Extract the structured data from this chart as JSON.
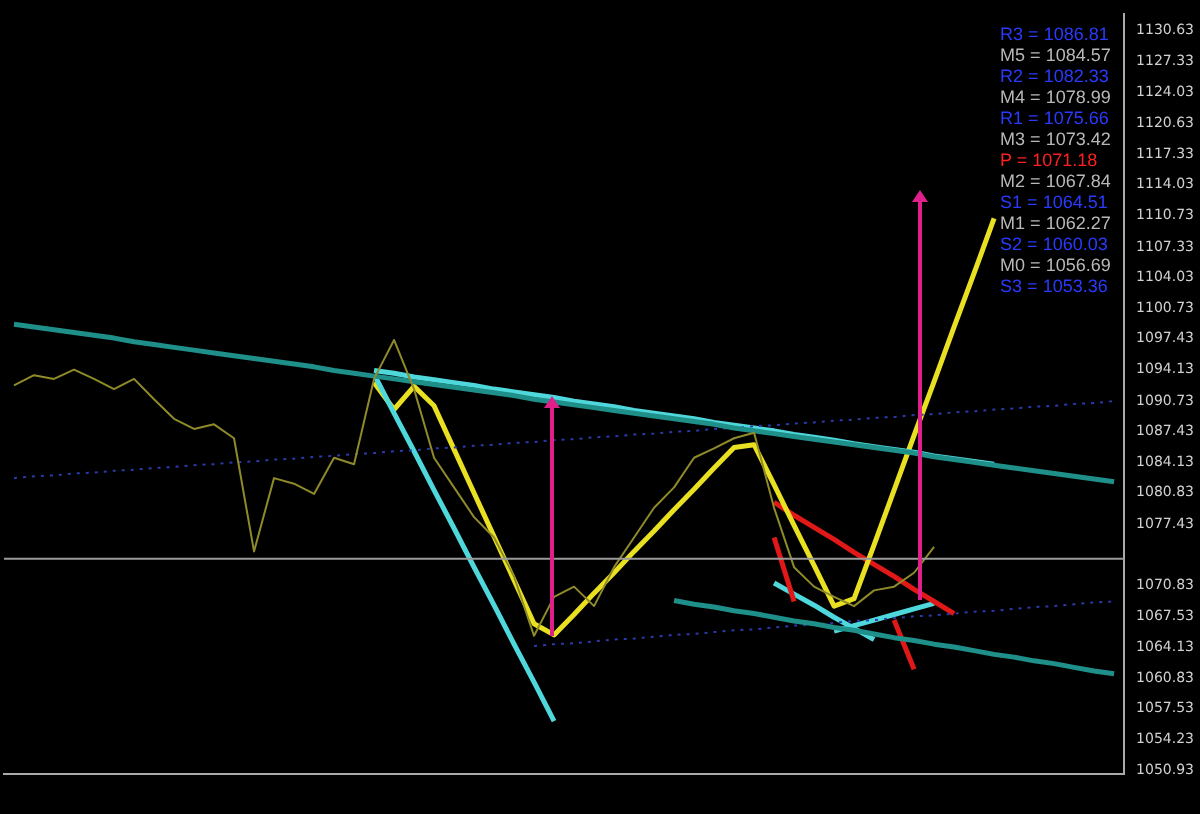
{
  "chart_data": {
    "type": "line",
    "categories": [
      null,
      null,
      null,
      null,
      null,
      null,
      null,
      null,
      null,
      null,
      null,
      null,
      null,
      null,
      null,
      null,
      null,
      null,
      null,
      null,
      null,
      null,
      null,
      null,
      null,
      null,
      null,
      null,
      null,
      null,
      null,
      null,
      null,
      null,
      null,
      null,
      null,
      null,
      null,
      null,
      null,
      null,
      null,
      null,
      null,
      null,
      null,
      null,
      null,
      null,
      null,
      null,
      null,
      null,
      null,
      null
    ],
    "series": [
      {
        "color": "#8f8a2a",
        "values": [
          1092.4,
          1093.5,
          1093.1,
          1094.1,
          1093.1,
          1092.0,
          1093.1,
          1090.9,
          1088.8,
          1087.7,
          1088.2,
          1086.7,
          1074.5,
          1082.4,
          1081.8,
          1080.7,
          1084.6,
          1083.9,
          1093.1,
          1097.3,
          1092.0,
          1084.6,
          1081.4,
          1078.2,
          1076.0,
          1071.8,
          1065.4,
          1069.6,
          1070.7,
          1068.6,
          1072.8,
          1076.0,
          1079.2,
          1081.4,
          1084.6,
          1085.6,
          1086.7,
          1087.3,
          1079.2,
          1072.8,
          1070.7,
          1069.6,
          1068.6,
          1070.3,
          1070.7,
          1072.2,
          1075.0,
          null,
          null,
          null,
          null,
          null,
          null,
          null,
          null,
          null
        ]
      },
      {
        "color": "#1f8f8a",
        "values": [
          1099.0,
          1098.7,
          1098.4,
          1098.1,
          1097.8,
          1097.5,
          1097.1,
          1096.8,
          1096.5,
          1096.2,
          1095.9,
          1095.6,
          1095.3,
          1095.0,
          1094.7,
          1094.4,
          1094.0,
          1093.7,
          1093.4,
          1093.1,
          1092.8,
          1092.5,
          1092.2,
          1091.9,
          1091.6,
          1091.3,
          1090.9,
          1090.6,
          1090.3,
          1090.0,
          1089.7,
          1089.4,
          1089.1,
          1088.8,
          1088.5,
          1088.2,
          1087.8,
          1087.5,
          1087.2,
          1086.9,
          1086.6,
          1086.3,
          1086.0,
          1085.7,
          1085.4,
          1085.1,
          1084.7,
          1084.4,
          1084.1,
          1083.8,
          1083.5,
          1083.2,
          1082.9,
          1082.6,
          1082.3,
          1082.0
        ]
      },
      {
        "color": "#1f8f8a",
        "values": [
          null,
          null,
          null,
          null,
          null,
          null,
          null,
          null,
          null,
          null,
          null,
          null,
          null,
          null,
          null,
          null,
          null,
          null,
          null,
          null,
          null,
          null,
          null,
          null,
          null,
          null,
          null,
          null,
          null,
          null,
          null,
          null,
          null,
          1069.2,
          1068.8,
          1068.5,
          1068.1,
          1067.8,
          1067.4,
          1067.0,
          1066.7,
          1066.3,
          1066.0,
          1065.6,
          1065.2,
          1064.9,
          1064.5,
          1064.2,
          1063.8,
          1063.4,
          1063.1,
          1062.7,
          1062.4,
          1062.0,
          1061.6,
          1061.3
        ]
      },
      {
        "color": "#2a3aa8",
        "line_style": "dotted",
        "values": [
          1082.4,
          1082.6,
          1082.7,
          1082.9,
          1083.0,
          1083.2,
          1083.3,
          1083.5,
          1083.6,
          1083.8,
          1083.9,
          1084.1,
          1084.2,
          1084.4,
          1084.5,
          1084.7,
          1084.8,
          1085.0,
          1085.1,
          1085.3,
          1085.4,
          1085.6,
          1085.7,
          1085.9,
          1086.0,
          1086.2,
          1086.3,
          1086.5,
          1086.6,
          1086.8,
          1086.9,
          1087.1,
          1087.2,
          1087.4,
          1087.5,
          1087.7,
          1087.8,
          1088.0,
          1088.1,
          1088.3,
          1088.4,
          1088.6,
          1088.7,
          1088.9,
          1089.0,
          1089.2,
          1089.3,
          1089.5,
          1089.6,
          1089.8,
          1089.9,
          1090.1,
          1090.2,
          1090.4,
          1090.5,
          1090.7
        ]
      },
      {
        "color": "#2a3aa8",
        "line_style": "dotted",
        "values": [
          null,
          null,
          null,
          null,
          null,
          null,
          null,
          null,
          null,
          null,
          null,
          null,
          null,
          null,
          null,
          null,
          null,
          null,
          null,
          null,
          null,
          null,
          null,
          null,
          null,
          null,
          1064.3,
          1064.5,
          1064.6,
          1064.8,
          1065.0,
          1065.1,
          1065.3,
          1065.5,
          1065.6,
          1065.8,
          1066.0,
          1066.1,
          1066.3,
          1066.5,
          1066.6,
          1066.8,
          1067.0,
          1067.1,
          1067.3,
          1067.5,
          1067.6,
          1067.8,
          1068.0,
          1068.1,
          1068.3,
          1068.5,
          1068.6,
          1068.8,
          1069.0,
          1069.1
        ]
      },
      {
        "color": "#4fd8dc",
        "values": [
          null,
          null,
          null,
          null,
          null,
          null,
          null,
          null,
          null,
          null,
          null,
          null,
          null,
          null,
          null,
          null,
          null,
          null,
          1094.0,
          1093.7,
          1093.3,
          1093.0,
          1092.7,
          1092.4,
          1092.0,
          1091.7,
          1091.4,
          1091.1,
          1090.7,
          1090.4,
          1090.1,
          1089.7,
          1089.4,
          1089.1,
          1088.8,
          1088.4,
          1088.1,
          1087.8,
          1087.5,
          1087.1,
          1086.8,
          1086.5,
          1086.1,
          1085.8,
          1085.5,
          1085.2,
          1084.8,
          1084.5,
          1084.2,
          1083.9,
          null,
          null,
          null,
          null,
          null,
          null
        ]
      },
      {
        "color": "#4fd8dc",
        "values": [
          null,
          null,
          null,
          null,
          null,
          null,
          null,
          null,
          null,
          null,
          null,
          null,
          null,
          null,
          null,
          null,
          null,
          null,
          1093.6,
          1089.4,
          1085.3,
          1081.1,
          1077.0,
          1072.8,
          1068.7,
          1064.5,
          1060.4,
          1056.2,
          null,
          null,
          null,
          null,
          null,
          null,
          null,
          null,
          null,
          null,
          null,
          null,
          null,
          null,
          null,
          null,
          null,
          null,
          null,
          null,
          null,
          null,
          null,
          null,
          null,
          null,
          null,
          null
        ]
      },
      {
        "color": "#e8e020",
        "values": [
          null,
          null,
          null,
          null,
          null,
          null,
          null,
          null,
          null,
          null,
          null,
          null,
          null,
          null,
          null,
          null,
          null,
          null,
          1092.7,
          1089.8,
          1092.3,
          1090.2,
          1085.5,
          1080.8,
          1076.1,
          1071.4,
          1066.7,
          1065.5,
          1067.7,
          1070.0,
          1072.2,
          1074.5,
          1076.7,
          1079.0,
          1081.2,
          1083.5,
          1085.7,
          1086.0,
          1081.7,
          1077.3,
          1073.0,
          1068.6,
          1069.4,
          1075.2,
          1081.1,
          1087.0,
          1092.8,
          1098.7,
          1104.5,
          1110.4,
          null,
          null,
          null,
          null,
          null,
          null
        ]
      },
      {
        "color": "#e01818",
        "values": [
          null,
          null,
          null,
          null,
          null,
          null,
          null,
          null,
          null,
          null,
          null,
          null,
          null,
          null,
          null,
          null,
          null,
          null,
          null,
          null,
          null,
          null,
          null,
          null,
          null,
          null,
          null,
          null,
          null,
          null,
          null,
          null,
          null,
          null,
          null,
          null,
          null,
          null,
          1076.0,
          1069.1,
          null,
          null,
          null,
          null,
          null,
          null,
          null,
          null,
          null,
          null,
          null,
          null,
          null,
          null,
          null,
          null
        ]
      },
      {
        "color": "#e01818",
        "values": [
          null,
          null,
          null,
          null,
          null,
          null,
          null,
          null,
          null,
          null,
          null,
          null,
          null,
          null,
          null,
          null,
          null,
          null,
          null,
          null,
          null,
          null,
          null,
          null,
          null,
          null,
          null,
          null,
          null,
          null,
          null,
          null,
          null,
          null,
          null,
          null,
          null,
          null,
          1079.8,
          1078.4,
          1077.1,
          1075.8,
          1074.4,
          1073.1,
          1071.8,
          1070.4,
          1069.1,
          1067.8,
          null,
          null,
          null,
          null,
          null,
          null,
          null,
          null
        ]
      },
      {
        "color": "#e01818",
        "values": [
          null,
          null,
          null,
          null,
          null,
          null,
          null,
          null,
          null,
          null,
          null,
          null,
          null,
          null,
          null,
          null,
          null,
          null,
          null,
          null,
          null,
          null,
          null,
          null,
          null,
          null,
          null,
          null,
          null,
          null,
          null,
          null,
          null,
          null,
          null,
          null,
          null,
          null,
          null,
          null,
          null,
          null,
          null,
          null,
          1067.1,
          1061.8,
          null,
          null,
          null,
          null,
          null,
          null,
          null,
          null,
          null,
          null
        ]
      },
      {
        "color": "#4fd8dc",
        "values": [
          null,
          null,
          null,
          null,
          null,
          null,
          null,
          null,
          null,
          null,
          null,
          null,
          null,
          null,
          null,
          null,
          null,
          null,
          null,
          null,
          null,
          null,
          null,
          null,
          null,
          null,
          null,
          null,
          null,
          null,
          null,
          null,
          null,
          null,
          null,
          null,
          null,
          null,
          1071.1,
          1069.9,
          1068.7,
          1067.4,
          1066.2,
          1065.0,
          null,
          null,
          null,
          null,
          null,
          null,
          null,
          null,
          null,
          null,
          null,
          null
        ]
      },
      {
        "color": "#4fd8dc",
        "values": [
          null,
          null,
          null,
          null,
          null,
          null,
          null,
          null,
          null,
          null,
          null,
          null,
          null,
          null,
          null,
          null,
          null,
          null,
          null,
          null,
          null,
          null,
          null,
          null,
          null,
          null,
          null,
          null,
          null,
          null,
          null,
          null,
          null,
          null,
          null,
          null,
          null,
          null,
          null,
          null,
          null,
          1065.9,
          1066.5,
          1067.1,
          1067.7,
          1068.3,
          1068.9,
          null,
          null,
          null,
          null,
          null,
          null,
          null,
          null,
          null
        ]
      }
    ],
    "ylim": [
      1050.5,
      1132.4
    ],
    "yticks": [
      1130.63,
      1127.33,
      1124.03,
      1120.63,
      1117.33,
      1114.03,
      1110.73,
      1107.33,
      1104.03,
      1100.73,
      1097.43,
      1094.13,
      1090.73,
      1087.43,
      1084.13,
      1080.83,
      1077.43,
      1070.83,
      1067.53,
      1064.13,
      1060.83,
      1057.53,
      1054.23,
      1050.93
    ],
    "ref_lines": [
      {
        "axis": "y",
        "value": 1073.7,
        "color": "#9a9a9a"
      }
    ],
    "annotations": [
      "R3 = 1086.81",
      "M5 = 1084.57",
      "R2 = 1082.33",
      "M4 = 1078.99",
      "R1 = 1075.66",
      "M3 = 1073.42",
      "P = 1071.18",
      "M2 = 1067.84",
      "S1 = 1064.51",
      "M1 = 1062.27",
      "S2 = 1060.03",
      "M0 = 1056.69",
      "S3 = 1053.36"
    ],
    "tick_labels": "y",
    "grid": false,
    "legend": false,
    "marker": "none",
    "line_style": "solid"
  }
}
